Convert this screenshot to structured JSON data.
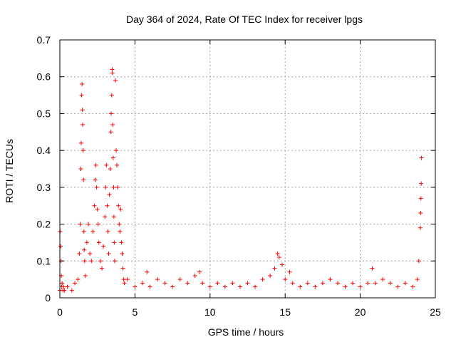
{
  "chart_data": {
    "type": "scatter",
    "title": "Day 364 of 2024, Rate Of TEC Index for receiver lpgs",
    "xlabel": "GPS time / hours",
    "ylabel": "ROTI / TECUs",
    "xlim": [
      0,
      25
    ],
    "ylim": [
      0,
      0.7
    ],
    "x_ticks": [
      "0",
      "5",
      "10",
      "15",
      "20",
      "25"
    ],
    "y_ticks": [
      "0",
      "0.1",
      "0.2",
      "0.3",
      "0.4",
      "0.5",
      "0.6",
      "0.7"
    ],
    "grid": true,
    "marker": "plus",
    "color": "#ff0000",
    "series": [
      {
        "name": "ROTI",
        "x": [
          0.0,
          0.02,
          0.05,
          0.08,
          0.1,
          0.12,
          0.15,
          0.2,
          0.25,
          0.3,
          0.5,
          0.8,
          1.0,
          1.2,
          1.3,
          1.35,
          1.4,
          1.42,
          1.45,
          1.48,
          1.5,
          1.52,
          1.55,
          1.58,
          1.6,
          1.62,
          1.65,
          1.7,
          1.8,
          1.9,
          2.0,
          2.1,
          2.2,
          2.3,
          2.35,
          2.4,
          2.45,
          2.5,
          2.55,
          2.6,
          2.7,
          2.8,
          2.9,
          3.0,
          3.05,
          3.1,
          3.15,
          3.2,
          3.25,
          3.3,
          3.35,
          3.4,
          3.42,
          3.45,
          3.48,
          3.5,
          3.52,
          3.55,
          3.58,
          3.6,
          3.62,
          3.65,
          3.7,
          3.75,
          3.8,
          3.85,
          3.9,
          3.95,
          4.0,
          4.05,
          4.1,
          4.15,
          4.2,
          4.25,
          4.3,
          4.5,
          5.0,
          5.5,
          5.8,
          6.0,
          6.5,
          7.0,
          7.5,
          8.0,
          8.5,
          9.0,
          9.3,
          9.5,
          10.0,
          10.5,
          11.0,
          11.5,
          12.0,
          12.5,
          13.0,
          13.5,
          14.0,
          14.3,
          14.5,
          14.6,
          14.8,
          15.0,
          15.3,
          15.5,
          16.0,
          16.5,
          17.0,
          17.5,
          18.0,
          18.5,
          19.0,
          19.5,
          20.0,
          20.5,
          20.8,
          21.0,
          21.5,
          22.0,
          22.5,
          23.0,
          23.5,
          23.8,
          23.9,
          24.0,
          24.02,
          24.04,
          24.06,
          24.08
        ],
        "y": [
          0.02,
          0.18,
          0.14,
          0.1,
          0.06,
          0.03,
          0.04,
          0.02,
          0.03,
          0.02,
          0.03,
          0.02,
          0.04,
          0.05,
          0.12,
          0.2,
          0.35,
          0.42,
          0.55,
          0.58,
          0.51,
          0.47,
          0.4,
          0.32,
          0.18,
          0.13,
          0.1,
          0.06,
          0.15,
          0.2,
          0.12,
          0.1,
          0.18,
          0.25,
          0.32,
          0.36,
          0.3,
          0.24,
          0.2,
          0.15,
          0.1,
          0.08,
          0.14,
          0.22,
          0.3,
          0.36,
          0.25,
          0.18,
          0.12,
          0.28,
          0.35,
          0.45,
          0.5,
          0.55,
          0.62,
          0.61,
          0.47,
          0.38,
          0.3,
          0.22,
          0.15,
          0.1,
          0.59,
          0.4,
          0.36,
          0.3,
          0.25,
          0.2,
          0.18,
          0.24,
          0.15,
          0.12,
          0.08,
          0.05,
          0.04,
          0.05,
          0.03,
          0.04,
          0.07,
          0.03,
          0.05,
          0.04,
          0.03,
          0.05,
          0.04,
          0.06,
          0.07,
          0.04,
          0.03,
          0.04,
          0.03,
          0.04,
          0.03,
          0.04,
          0.03,
          0.05,
          0.06,
          0.08,
          0.12,
          0.11,
          0.09,
          0.05,
          0.07,
          0.04,
          0.03,
          0.04,
          0.03,
          0.04,
          0.05,
          0.04,
          0.03,
          0.04,
          0.03,
          0.04,
          0.08,
          0.04,
          0.05,
          0.04,
          0.03,
          0.04,
          0.03,
          0.05,
          0.1,
          0.19,
          0.23,
          0.27,
          0.31,
          0.38
        ]
      }
    ]
  }
}
